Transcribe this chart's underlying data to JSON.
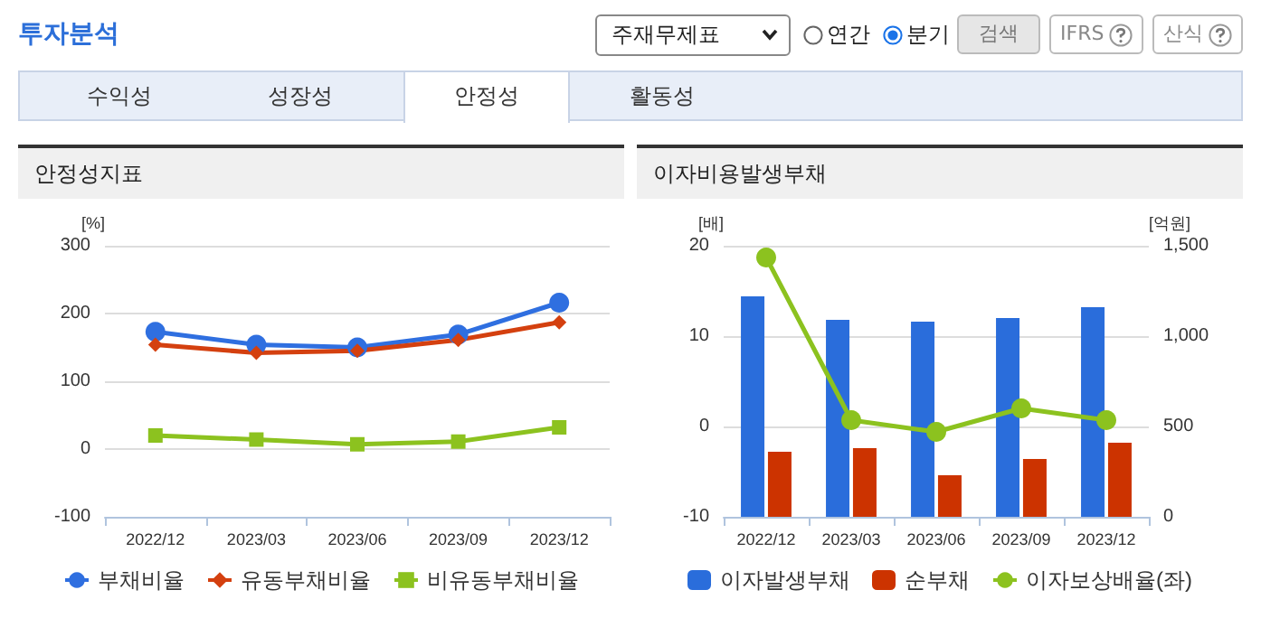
{
  "chart_data": [
    {
      "type": "other",
      "title": "투자분석",
      "annotations": [
        "주재무제표",
        "연간",
        "분기",
        "검색",
        "IFRS",
        "산식",
        "수익성",
        "성장성",
        "안정성",
        "활동성"
      ]
    },
    {
      "type": "line",
      "title": "안정성지표",
      "ylabel": "[%]",
      "categories": [
        "2022/12",
        "2023/03",
        "2023/06",
        "2023/09",
        "2023/12"
      ],
      "series": [
        {
          "name": "부채비율",
          "color": "#2f6fe0",
          "marker": "circle",
          "values": [
            173,
            154,
            150,
            169,
            216
          ]
        },
        {
          "name": "유동부채비율",
          "color": "#d4400f",
          "marker": "diamond",
          "values": [
            154,
            142,
            145,
            161,
            187
          ]
        },
        {
          "name": "비유동부채비율",
          "color": "#8cc21f",
          "marker": "square",
          "values": [
            20,
            14,
            7,
            11,
            32
          ]
        }
      ],
      "ylim": [
        -100,
        300
      ],
      "yticks": [
        -100,
        0,
        100,
        200,
        300
      ],
      "grid": "y",
      "legend": "bottom"
    },
    {
      "type": "bar",
      "title": "이자비용발생부채",
      "ylabel": "[배]",
      "y2label": "[억원]",
      "categories": [
        "2022/12",
        "2023/03",
        "2023/06",
        "2023/09",
        "2023/12"
      ],
      "series": [
        {
          "name": "이자발생부채",
          "color": "#2a6ddb",
          "axis": "y2",
          "values": [
            1220,
            1090,
            1080,
            1100,
            1160
          ]
        },
        {
          "name": "순부채",
          "color": "#cc3300",
          "axis": "y2",
          "values": [
            360,
            380,
            230,
            320,
            410
          ]
        },
        {
          "name": "이자보상배율(좌)",
          "type": "line",
          "color": "#8cc21f",
          "marker": "circle",
          "axis": "y",
          "values": [
            18.7,
            0.7,
            -0.6,
            2.0,
            0.7
          ]
        }
      ],
      "ylim": [
        -10,
        20
      ],
      "yticks": [
        -10,
        0,
        10,
        20
      ],
      "y2lim": [
        0,
        1500
      ],
      "y2ticks": [
        0,
        500,
        {
          "value": 1000,
          "label": "1,000"
        },
        {
          "value": 1500,
          "label": "1,500"
        }
      ],
      "grid": "y",
      "legend": "bottom"
    }
  ]
}
